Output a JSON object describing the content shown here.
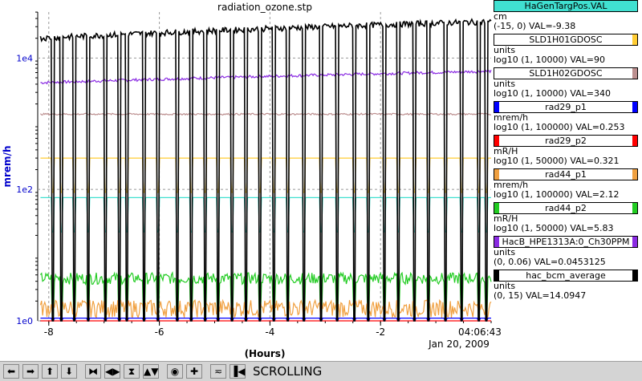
{
  "chart_data": {
    "type": "line",
    "title": "radiation_ozone.stp",
    "xlabel": "(Hours)",
    "ylabel": "mrem/h",
    "xlim": [
      -8.2,
      0
    ],
    "ylim_log10": [
      0,
      4.7
    ],
    "x_ticks": [
      -8,
      -6,
      -4,
      -2
    ],
    "x_tick_labels": [
      "-8",
      "-6",
      "-4",
      "-2"
    ],
    "y_ticks": [
      1,
      100,
      10000
    ],
    "y_tick_labels": [
      "1e0",
      "1e2",
      "1e4"
    ],
    "time_label": "04:06:43",
    "date_label": "Jan 20, 2009",
    "series": [
      {
        "name": "HaGenTargPos.VAL",
        "color": "#40e0d0",
        "level": 75
      },
      {
        "name": "SLD1H01GDOSC",
        "color": "#ffcc33",
        "level": 300
      },
      {
        "name": "SLD1H02GDOSC",
        "color": "#bc8f8f",
        "level": 1400
      },
      {
        "name": "rad29_p1",
        "color": "#0000ff",
        "level": 1.1
      },
      {
        "name": "rad29_p2",
        "color": "#ff0000",
        "level": 1.0
      },
      {
        "name": "rad44_p1",
        "color": "#f0a040",
        "level": 1.6
      },
      {
        "name": "rad44_p2",
        "color": "#22cc22",
        "level": 4.5
      },
      {
        "name": "HacB_HPE1313A:0_Ch30PPM",
        "color": "#8a2be2",
        "level": 4200
      },
      {
        "name": "hac_bcm_average",
        "color": "#000000",
        "level": 20000
      }
    ]
  },
  "legend": [
    {
      "name": "HaGenTargPos.VAL",
      "color": "#40e0d0",
      "bar": "left",
      "unit": "cm",
      "range": "(-15, 0) VAL=-9.38"
    },
    {
      "name": "SLD1H01GDOSC",
      "color": "#ffcc33",
      "bar": "right",
      "unit": "units",
      "range": "log10 (1, 10000) VAL=90"
    },
    {
      "name": "SLD1H02GDOSC",
      "color": "#bc8f8f",
      "bar": "right",
      "unit": "units",
      "range": "log10 (1, 10000) VAL=340"
    },
    {
      "name": "rad29_p1",
      "color": "#0000ff",
      "bar": "both",
      "unit": "mrem/h",
      "range": "log10 (1, 100000) VAL=0.253"
    },
    {
      "name": "rad29_p2",
      "color": "#ff0000",
      "bar": "both",
      "unit": "mR/H",
      "range": "log10 (1, 50000) VAL=0.321"
    },
    {
      "name": "rad44_p1",
      "color": "#f0a040",
      "bar": "both",
      "unit": "mrem/h",
      "range": "log10 (1, 100000) VAL=2.12"
    },
    {
      "name": "rad44_p2",
      "color": "#22cc22",
      "bar": "both",
      "unit": "mR/H",
      "range": "log10 (1, 50000) VAL=5.83"
    },
    {
      "name": "HacB_HPE1313A:0_Ch30PPM",
      "color": "#8a2be2",
      "bar": "both",
      "unit": "units",
      "range": "(0, 0.06) VAL=0.0453125"
    },
    {
      "name": "hac_bcm_average",
      "color": "#000000",
      "bar": "both",
      "unit": "units",
      "range": "(0, 15) VAL=14.0947"
    }
  ],
  "toolbar": {
    "buttons": [
      {
        "icon": "arrow-left-icon",
        "glyph": "⬅"
      },
      {
        "icon": "arrow-right-icon",
        "glyph": "➡"
      },
      {
        "icon": "arrow-up-icon",
        "glyph": "⬆"
      },
      {
        "icon": "arrow-down-icon",
        "glyph": "⬇"
      },
      {
        "icon": "zoom-in-horizontal-icon",
        "glyph": "⧓"
      },
      {
        "icon": "zoom-out-horizontal-icon",
        "glyph": "◀▶"
      },
      {
        "icon": "zoom-in-vertical-icon",
        "glyph": "⧗"
      },
      {
        "icon": "zoom-out-vertical-icon",
        "glyph": "▲▼"
      },
      {
        "icon": "record-icon",
        "glyph": "◉"
      },
      {
        "icon": "add-icon",
        "glyph": "✚"
      },
      {
        "icon": "autoscale-icon",
        "glyph": "≂"
      },
      {
        "icon": "scroll-icon",
        "glyph": "▐◀"
      }
    ],
    "status": "SCROLLING"
  }
}
